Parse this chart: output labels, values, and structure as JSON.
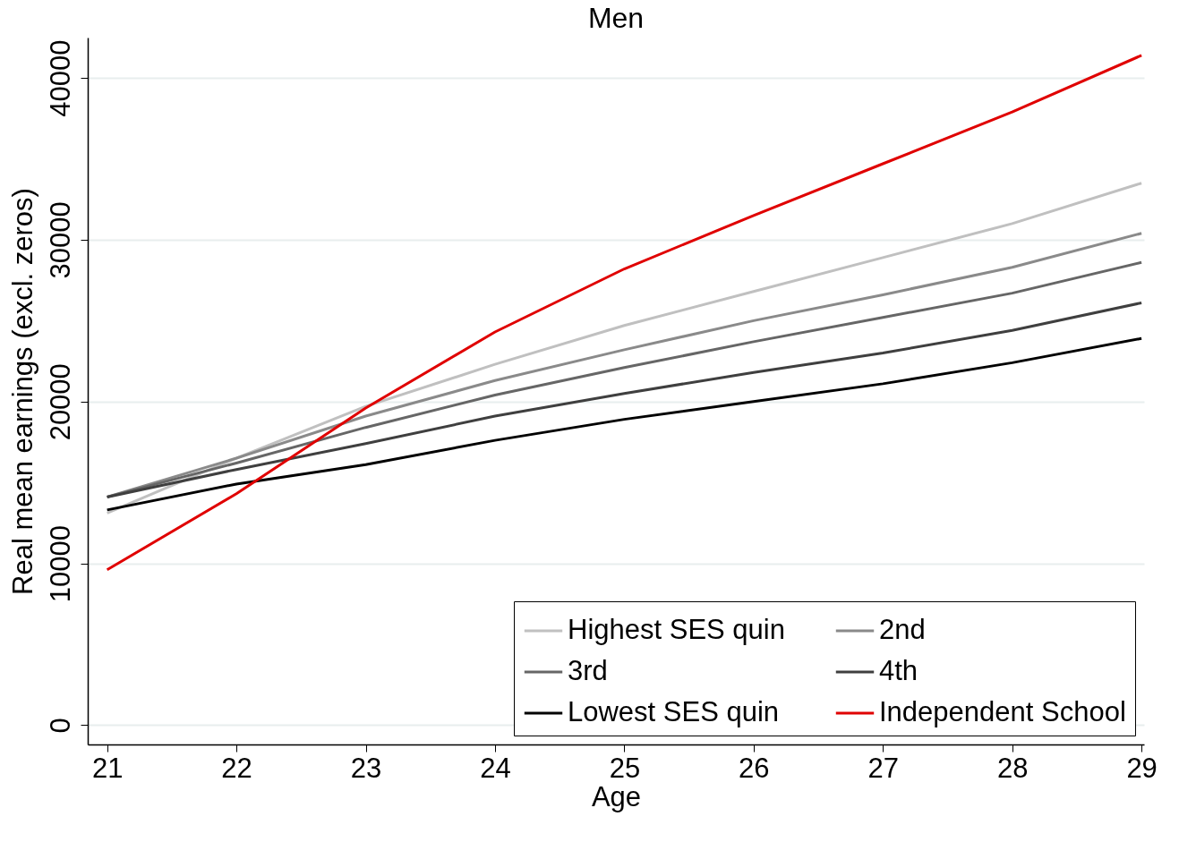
{
  "chart_data": {
    "type": "line",
    "title": "Men",
    "xlabel": "Age",
    "ylabel": "Real mean earnings (excl. zeros)",
    "x": [
      21,
      22,
      23,
      24,
      25,
      26,
      27,
      28,
      29
    ],
    "series": [
      {
        "name": "Highest SES quin",
        "color": "#c0c0c0",
        "values": [
          13100,
          16500,
          19700,
          22300,
          24700,
          26800,
          28900,
          31000,
          33500
        ]
      },
      {
        "name": "2nd",
        "color": "#8a8a8a",
        "values": [
          14100,
          16500,
          19100,
          21300,
          23200,
          25000,
          26600,
          28300,
          30400
        ]
      },
      {
        "name": "3rd",
        "color": "#666666",
        "values": [
          14100,
          16200,
          18400,
          20400,
          22100,
          23700,
          25200,
          26700,
          28600
        ]
      },
      {
        "name": "4th",
        "color": "#3f3f3f",
        "values": [
          14100,
          15800,
          17400,
          19100,
          20500,
          21800,
          23000,
          24400,
          26100
        ]
      },
      {
        "name": "Lowest SES quin",
        "color": "#000000",
        "values": [
          13300,
          14900,
          16100,
          17600,
          18900,
          20000,
          21100,
          22400,
          23900
        ]
      },
      {
        "name": "Independent School",
        "color": "#e00000",
        "values": [
          9600,
          14300,
          19600,
          24300,
          28200,
          31500,
          34700,
          37900,
          41400
        ]
      }
    ],
    "xlim": [
      20.85,
      29.02
    ],
    "xticks": [
      21,
      22,
      23,
      24,
      25,
      26,
      27,
      28,
      29
    ],
    "ylim": [
      -1200,
      42500
    ],
    "yticks": [
      0,
      10000,
      20000,
      30000,
      40000
    ],
    "grid": "y",
    "legend": "bottom right",
    "line_style": "solid",
    "marker": "none"
  }
}
